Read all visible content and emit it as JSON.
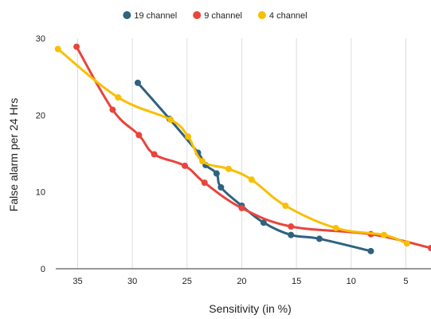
{
  "chart_data": {
    "type": "line",
    "title": "",
    "xlabel": "Sensitivity (in %)",
    "ylabel": "False alarm per 24 Hrs",
    "xlim": [
      37,
      2.7
    ],
    "ylim": [
      0,
      30
    ],
    "x_reversed": true,
    "x_ticks": [
      35,
      30,
      25,
      20,
      15,
      10,
      5
    ],
    "y_ticks": [
      0,
      10,
      20,
      30
    ],
    "grid": "vertical",
    "legend_position": "top",
    "series": [
      {
        "name": "19 channel",
        "color": "#2e6280",
        "points": [
          [
            29.5,
            24.2
          ],
          [
            26.6,
            19.5
          ],
          [
            24.0,
            15.1
          ],
          [
            23.3,
            13.5
          ],
          [
            22.3,
            12.4
          ],
          [
            21.9,
            10.6
          ],
          [
            20.0,
            8.2
          ],
          [
            18.0,
            6.0
          ],
          [
            15.5,
            4.4
          ],
          [
            12.9,
            3.9
          ],
          [
            8.2,
            2.3
          ]
        ]
      },
      {
        "name": "9 channel",
        "color": "#e8453c",
        "points": [
          [
            35.1,
            28.9
          ],
          [
            31.8,
            20.7
          ],
          [
            29.4,
            17.4
          ],
          [
            28.0,
            14.9
          ],
          [
            25.2,
            13.4
          ],
          [
            23.4,
            11.2
          ],
          [
            20.0,
            7.9
          ],
          [
            15.5,
            5.5
          ],
          [
            8.2,
            4.5
          ],
          [
            2.7,
            2.7
          ]
        ]
      },
      {
        "name": "4 channel",
        "color": "#f9bf00",
        "points": [
          [
            36.8,
            28.6
          ],
          [
            31.3,
            22.3
          ],
          [
            26.5,
            19.4
          ],
          [
            24.9,
            17.2
          ],
          [
            23.6,
            14.0
          ],
          [
            21.2,
            13.0
          ],
          [
            19.1,
            11.6
          ],
          [
            16.0,
            8.2
          ],
          [
            11.4,
            5.3
          ],
          [
            7.0,
            4.4
          ],
          [
            4.9,
            3.3
          ]
        ]
      }
    ]
  }
}
